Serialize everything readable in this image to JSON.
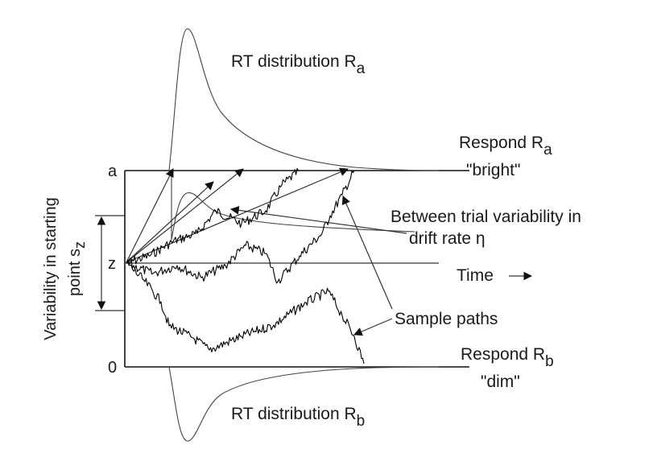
{
  "labels": {
    "rt_top": "RT distribution R",
    "rt_top_sub": "a",
    "rt_bottom": "RT distribution R",
    "rt_bottom_sub": "b",
    "respond_top": "Respond R",
    "respond_top_sub": "a",
    "respond_top_word": "\"bright\"",
    "respond_bottom": "Respond R",
    "respond_bottom_sub": "b",
    "respond_bottom_word": "\"dim\"",
    "between_trial_line1": "Between trial variability in",
    "between_trial_line2": "drift rate η",
    "time": "Time",
    "sample_paths": "Sample paths",
    "ylabel_line1": "Variability in starting",
    "ylabel_line2": "point s",
    "ylabel_sub": "z",
    "tick_a": "a",
    "tick_z": "z",
    "tick_0": "0"
  },
  "colors": {
    "ink": "#111111",
    "background": "#ffffff"
  }
}
